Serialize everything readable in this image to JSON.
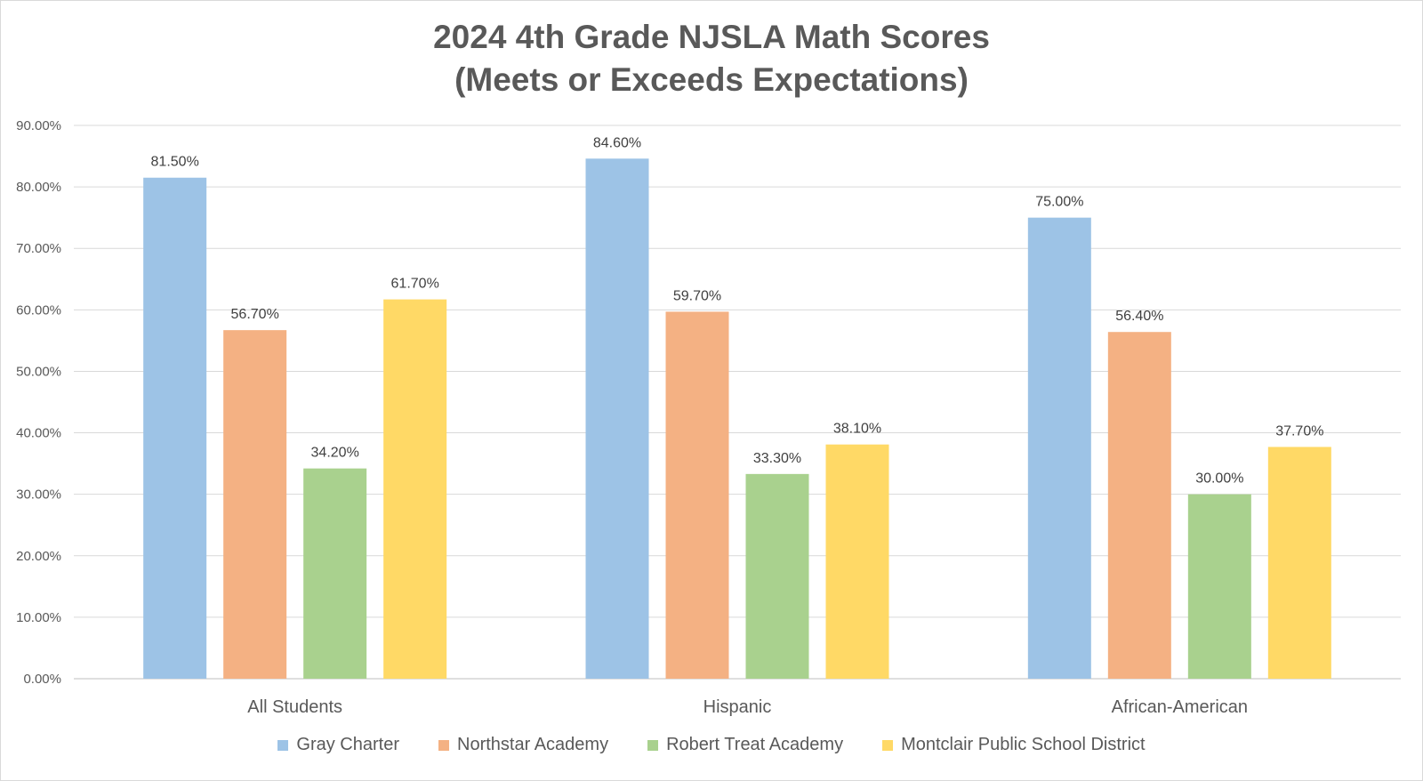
{
  "chart_data": {
    "type": "bar",
    "title": "2024 4th Grade NJSLA Math Scores",
    "subtitle": "(Meets or Exceeds Expectations)",
    "categories": [
      "All Students",
      "Hispanic",
      "African-American"
    ],
    "series": [
      {
        "name": "Gray Charter",
        "color": "#9dc3e6",
        "values": [
          81.5,
          84.6,
          75.0
        ],
        "labels": [
          "81.50%",
          "84.60%",
          "75.00%"
        ]
      },
      {
        "name": "Northstar Academy",
        "color": "#f4b183",
        "values": [
          56.7,
          59.7,
          56.4
        ],
        "labels": [
          "56.70%",
          "59.70%",
          "56.40%"
        ]
      },
      {
        "name": "Robert Treat Academy",
        "color": "#a9d18e",
        "values": [
          34.2,
          33.3,
          30.0
        ],
        "labels": [
          "34.20%",
          "33.30%",
          "30.00%"
        ]
      },
      {
        "name": "Montclair Public School District",
        "color": "#ffd966",
        "values": [
          61.7,
          38.1,
          37.7
        ],
        "labels": [
          "61.70%",
          "38.10%",
          "37.70%"
        ]
      }
    ],
    "y_ticks": [
      "0.00%",
      "10.00%",
      "20.00%",
      "30.00%",
      "40.00%",
      "50.00%",
      "60.00%",
      "70.00%",
      "80.00%",
      "90.00%"
    ],
    "ylim": [
      0,
      90
    ],
    "xlabel": "",
    "ylabel": "",
    "grid": true,
    "legend_position": "bottom"
  }
}
